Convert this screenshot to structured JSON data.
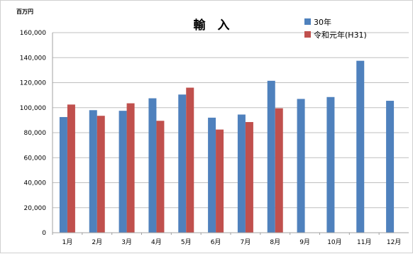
{
  "chart_data": {
    "type": "bar",
    "title": "輸　入",
    "unit_label": "百万円",
    "categories": [
      "1月",
      "2月",
      "3月",
      "4月",
      "5月",
      "6月",
      "7月",
      "8月",
      "9月",
      "10月",
      "11月",
      "12月"
    ],
    "series": [
      {
        "name": "30年",
        "color": "#4F81BD",
        "values": [
          92500,
          98000,
          97500,
          107500,
          110500,
          92000,
          94500,
          121500,
          107000,
          108500,
          137500,
          105500
        ]
      },
      {
        "name": "令和元年(H31)",
        "color": "#C0504D",
        "values": [
          102500,
          93500,
          103500,
          89500,
          116000,
          82500,
          88500,
          99500,
          null,
          null,
          null,
          null
        ]
      }
    ],
    "ylim": [
      0,
      160000
    ],
    "yticks": [
      "0",
      "20,000",
      "40,000",
      "60,000",
      "80,000",
      "100,000",
      "120,000",
      "140,000",
      "160,000"
    ],
    "ytick_values": [
      0,
      20000,
      40000,
      60000,
      80000,
      100000,
      120000,
      140000,
      160000
    ],
    "grid": true,
    "legend_position": "top-right",
    "gridline_color": "#bfbfbf"
  }
}
